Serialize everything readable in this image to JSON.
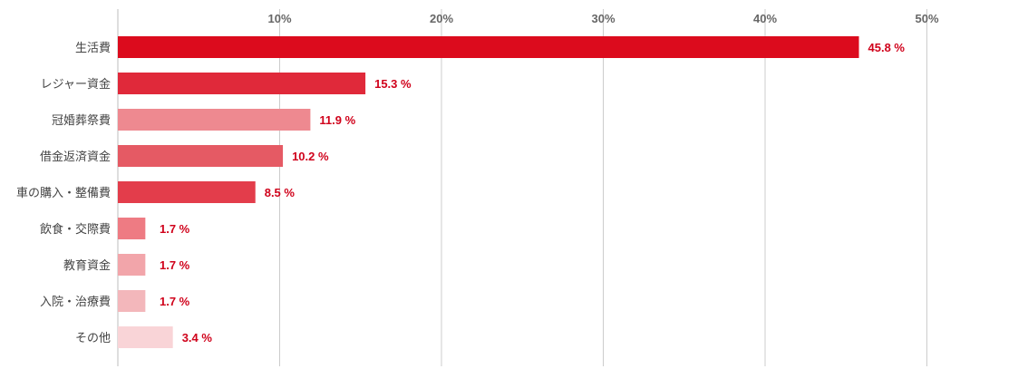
{
  "chart_data": {
    "type": "bar",
    "orientation": "horizontal",
    "categories": [
      "生活費",
      "レジャー資金",
      "冠婚葬祭費",
      "借金返済資金",
      "車の購入・整備費",
      "飲食・交際費",
      "教育資金",
      "入院・治療費",
      "その他"
    ],
    "values": [
      45.8,
      15.3,
      11.9,
      10.2,
      8.5,
      1.7,
      1.7,
      1.7,
      3.4
    ],
    "value_labels": [
      "45.8 %",
      "15.3 %",
      "11.9 %",
      "10.2 %",
      "8.5 %",
      "1.7 %",
      "1.7 %",
      "1.7 %",
      "3.4 %"
    ],
    "bar_colors": [
      "#dc0b1d",
      "#e0293a",
      "#ee8990",
      "#e55a64",
      "#e33d4b",
      "#ee7b83",
      "#f2a5aa",
      "#f3b7bb",
      "#f9d4d7"
    ],
    "value_label_color": "#d0021b",
    "ticks": [
      10,
      20,
      30,
      40,
      50
    ],
    "tick_labels": [
      "10%",
      "20%",
      "30%",
      "40%",
      "50%"
    ],
    "xlim": [
      0,
      55
    ],
    "grid": true,
    "title": "",
    "xlabel": "",
    "ylabel": ""
  }
}
